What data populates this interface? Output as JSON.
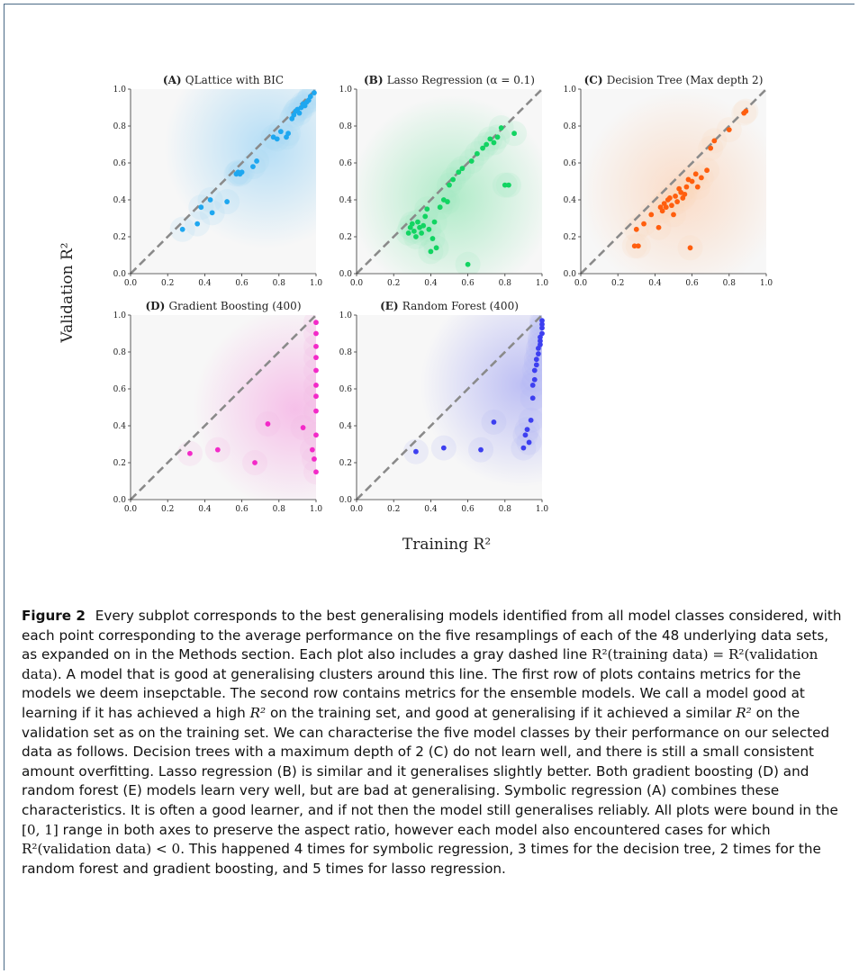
{
  "figure": {
    "shared_xlabel": "Training R²",
    "shared_ylabel": "Validation R²",
    "tick_labels": [
      "0.0",
      "0.2",
      "0.4",
      "0.6",
      "0.8",
      "1.0"
    ]
  },
  "chart_data": [
    {
      "type": "scatter",
      "panel": "A",
      "title_bold": "(A)",
      "title_rest": "QLattice with BIC",
      "color": "#1ea7f0",
      "shade": "#a9d9f5",
      "xlim": [
        0,
        1
      ],
      "ylim": [
        0,
        1
      ],
      "reference_line": "y = x, gray dashed",
      "points": [
        [
          0.28,
          0.24
        ],
        [
          0.36,
          0.27
        ],
        [
          0.38,
          0.36
        ],
        [
          0.43,
          0.4
        ],
        [
          0.44,
          0.33
        ],
        [
          0.52,
          0.39
        ],
        [
          0.57,
          0.54
        ],
        [
          0.58,
          0.55
        ],
        [
          0.59,
          0.54
        ],
        [
          0.6,
          0.55
        ],
        [
          0.66,
          0.58
        ],
        [
          0.68,
          0.61
        ],
        [
          0.77,
          0.74
        ],
        [
          0.79,
          0.73
        ],
        [
          0.81,
          0.77
        ],
        [
          0.84,
          0.74
        ],
        [
          0.85,
          0.76
        ],
        [
          0.87,
          0.84
        ],
        [
          0.88,
          0.86
        ],
        [
          0.89,
          0.88
        ],
        [
          0.9,
          0.89
        ],
        [
          0.91,
          0.87
        ],
        [
          0.92,
          0.9
        ],
        [
          0.93,
          0.92
        ],
        [
          0.94,
          0.91
        ],
        [
          0.95,
          0.93
        ],
        [
          0.96,
          0.94
        ],
        [
          0.97,
          0.96
        ],
        [
          0.99,
          0.98
        ]
      ]
    },
    {
      "type": "scatter",
      "panel": "B",
      "title_bold": "(B)",
      "title_rest": "Lasso Regression (α = 0.1)",
      "color": "#12d462",
      "shade": "#a3e9c0",
      "xlim": [
        0,
        1
      ],
      "ylim": [
        0,
        1
      ],
      "reference_line": "y = x, gray dashed",
      "points": [
        [
          0.28,
          0.22
        ],
        [
          0.29,
          0.25
        ],
        [
          0.3,
          0.27
        ],
        [
          0.31,
          0.23
        ],
        [
          0.32,
          0.2
        ],
        [
          0.33,
          0.28
        ],
        [
          0.34,
          0.25
        ],
        [
          0.35,
          0.22
        ],
        [
          0.36,
          0.26
        ],
        [
          0.37,
          0.31
        ],
        [
          0.38,
          0.35
        ],
        [
          0.39,
          0.24
        ],
        [
          0.4,
          0.12
        ],
        [
          0.41,
          0.19
        ],
        [
          0.42,
          0.28
        ],
        [
          0.43,
          0.14
        ],
        [
          0.45,
          0.36
        ],
        [
          0.47,
          0.4
        ],
        [
          0.49,
          0.39
        ],
        [
          0.5,
          0.48
        ],
        [
          0.52,
          0.51
        ],
        [
          0.55,
          0.55
        ],
        [
          0.57,
          0.57
        ],
        [
          0.6,
          0.05
        ],
        [
          0.62,
          0.61
        ],
        [
          0.65,
          0.65
        ],
        [
          0.68,
          0.68
        ],
        [
          0.7,
          0.7
        ],
        [
          0.72,
          0.73
        ],
        [
          0.74,
          0.71
        ],
        [
          0.76,
          0.74
        ],
        [
          0.78,
          0.79
        ],
        [
          0.8,
          0.48
        ],
        [
          0.82,
          0.48
        ],
        [
          0.85,
          0.76
        ]
      ]
    },
    {
      "type": "scatter",
      "panel": "C",
      "title_bold": "(C)",
      "title_rest": "Decision Tree (Max depth 2)",
      "color": "#ff5e0e",
      "shade": "#fbd7bf",
      "xlim": [
        0,
        1
      ],
      "ylim": [
        0,
        1
      ],
      "reference_line": "y = x, gray dashed",
      "points": [
        [
          0.29,
          0.15
        ],
        [
          0.3,
          0.24
        ],
        [
          0.31,
          0.15
        ],
        [
          0.34,
          0.27
        ],
        [
          0.38,
          0.32
        ],
        [
          0.42,
          0.25
        ],
        [
          0.43,
          0.36
        ],
        [
          0.44,
          0.34
        ],
        [
          0.45,
          0.38
        ],
        [
          0.46,
          0.36
        ],
        [
          0.47,
          0.4
        ],
        [
          0.48,
          0.41
        ],
        [
          0.49,
          0.37
        ],
        [
          0.5,
          0.32
        ],
        [
          0.51,
          0.42
        ],
        [
          0.52,
          0.39
        ],
        [
          0.53,
          0.46
        ],
        [
          0.54,
          0.44
        ],
        [
          0.55,
          0.41
        ],
        [
          0.56,
          0.43
        ],
        [
          0.57,
          0.47
        ],
        [
          0.58,
          0.51
        ],
        [
          0.59,
          0.14
        ],
        [
          0.6,
          0.5
        ],
        [
          0.62,
          0.54
        ],
        [
          0.63,
          0.47
        ],
        [
          0.65,
          0.52
        ],
        [
          0.68,
          0.56
        ],
        [
          0.7,
          0.68
        ],
        [
          0.72,
          0.72
        ],
        [
          0.8,
          0.78
        ],
        [
          0.88,
          0.87
        ],
        [
          0.89,
          0.88
        ]
      ]
    },
    {
      "type": "scatter",
      "panel": "D",
      "title_bold": "(D)",
      "title_rest": "Gradient Boosting (400)",
      "color": "#f32ac8",
      "shade": "#f5b6e6",
      "xlim": [
        0,
        1
      ],
      "ylim": [
        0,
        1
      ],
      "reference_line": "y = x, gray dashed",
      "points": [
        [
          0.32,
          0.25
        ],
        [
          0.47,
          0.27
        ],
        [
          0.67,
          0.2
        ],
        [
          0.74,
          0.41
        ],
        [
          0.93,
          0.39
        ],
        [
          0.98,
          0.27
        ],
        [
          0.99,
          0.22
        ],
        [
          1.0,
          0.15
        ],
        [
          1.0,
          0.35
        ],
        [
          1.0,
          0.48
        ],
        [
          1.0,
          0.56
        ],
        [
          1.0,
          0.62
        ],
        [
          1.0,
          0.7
        ],
        [
          1.0,
          0.77
        ],
        [
          1.0,
          0.83
        ],
        [
          1.0,
          0.9
        ],
        [
          1.0,
          0.96
        ]
      ]
    },
    {
      "type": "scatter",
      "panel": "E",
      "title_bold": "(E)",
      "title_rest": "Random Forest (400)",
      "color": "#3d3ff0",
      "shade": "#b3b5f3",
      "xlim": [
        0,
        1
      ],
      "ylim": [
        0,
        1
      ],
      "reference_line": "y = x, gray dashed",
      "points": [
        [
          0.32,
          0.26
        ],
        [
          0.47,
          0.28
        ],
        [
          0.67,
          0.27
        ],
        [
          0.74,
          0.42
        ],
        [
          0.9,
          0.28
        ],
        [
          0.91,
          0.35
        ],
        [
          0.92,
          0.38
        ],
        [
          0.93,
          0.31
        ],
        [
          0.94,
          0.43
        ],
        [
          0.95,
          0.55
        ],
        [
          0.95,
          0.62
        ],
        [
          0.96,
          0.65
        ],
        [
          0.96,
          0.7
        ],
        [
          0.97,
          0.73
        ],
        [
          0.97,
          0.76
        ],
        [
          0.98,
          0.79
        ],
        [
          0.98,
          0.82
        ],
        [
          0.99,
          0.84
        ],
        [
          0.99,
          0.86
        ],
        [
          0.99,
          0.88
        ],
        [
          1.0,
          0.9
        ],
        [
          1.0,
          0.93
        ],
        [
          1.0,
          0.95
        ],
        [
          1.0,
          0.97
        ]
      ]
    }
  ],
  "caption": {
    "label": "Figure 2",
    "p1": "Every subplot corresponds to the best generalising models identified from all model classes considered, with each point corresponding to the average performance on the five resamplings of each of the 48 underlying data sets, as expanded on in the Methods section. Each plot also includes a gray dashed line",
    "eq1": "R²(training data) = R²(validation data).",
    "p2": "A model that is good at generalising clusters around this line. The first row of plots contains metrics for the models we deem insepctable. The second row contains metrics for the ensemble models. We call a model good at learning if it has achieved a high",
    "r2_a": "R²",
    "p3": "on the training set, and good at generalising if it achieved a similar",
    "r2_b": "R²",
    "p4": "on the validation set as on the training set. We can characterise the five model classes by their performance on our selected data as follows. Decision trees with a maximum depth of 2 (C) do not learn well, and there is still a small consistent amount overfitting. Lasso regression (B) is similar and it generalises slightly better. Both gradient boosting (D) and random forest (E) models learn very well, but are bad at generalising. Symbolic regression (A) combines these characteristics. It is often a good learner, and if not then the model still generalises reliably. All plots were bound in the",
    "range": "[0, 1]",
    "p5": "range in both axes to preserve the aspect ratio, however each model also encountered cases for which",
    "eq2": "R²(validation data) < 0.",
    "p6": "This happened 4 times for symbolic regression, 3 times for the decision tree, 2 times for the random forest and gradient boosting, and 5 times for lasso regression."
  }
}
